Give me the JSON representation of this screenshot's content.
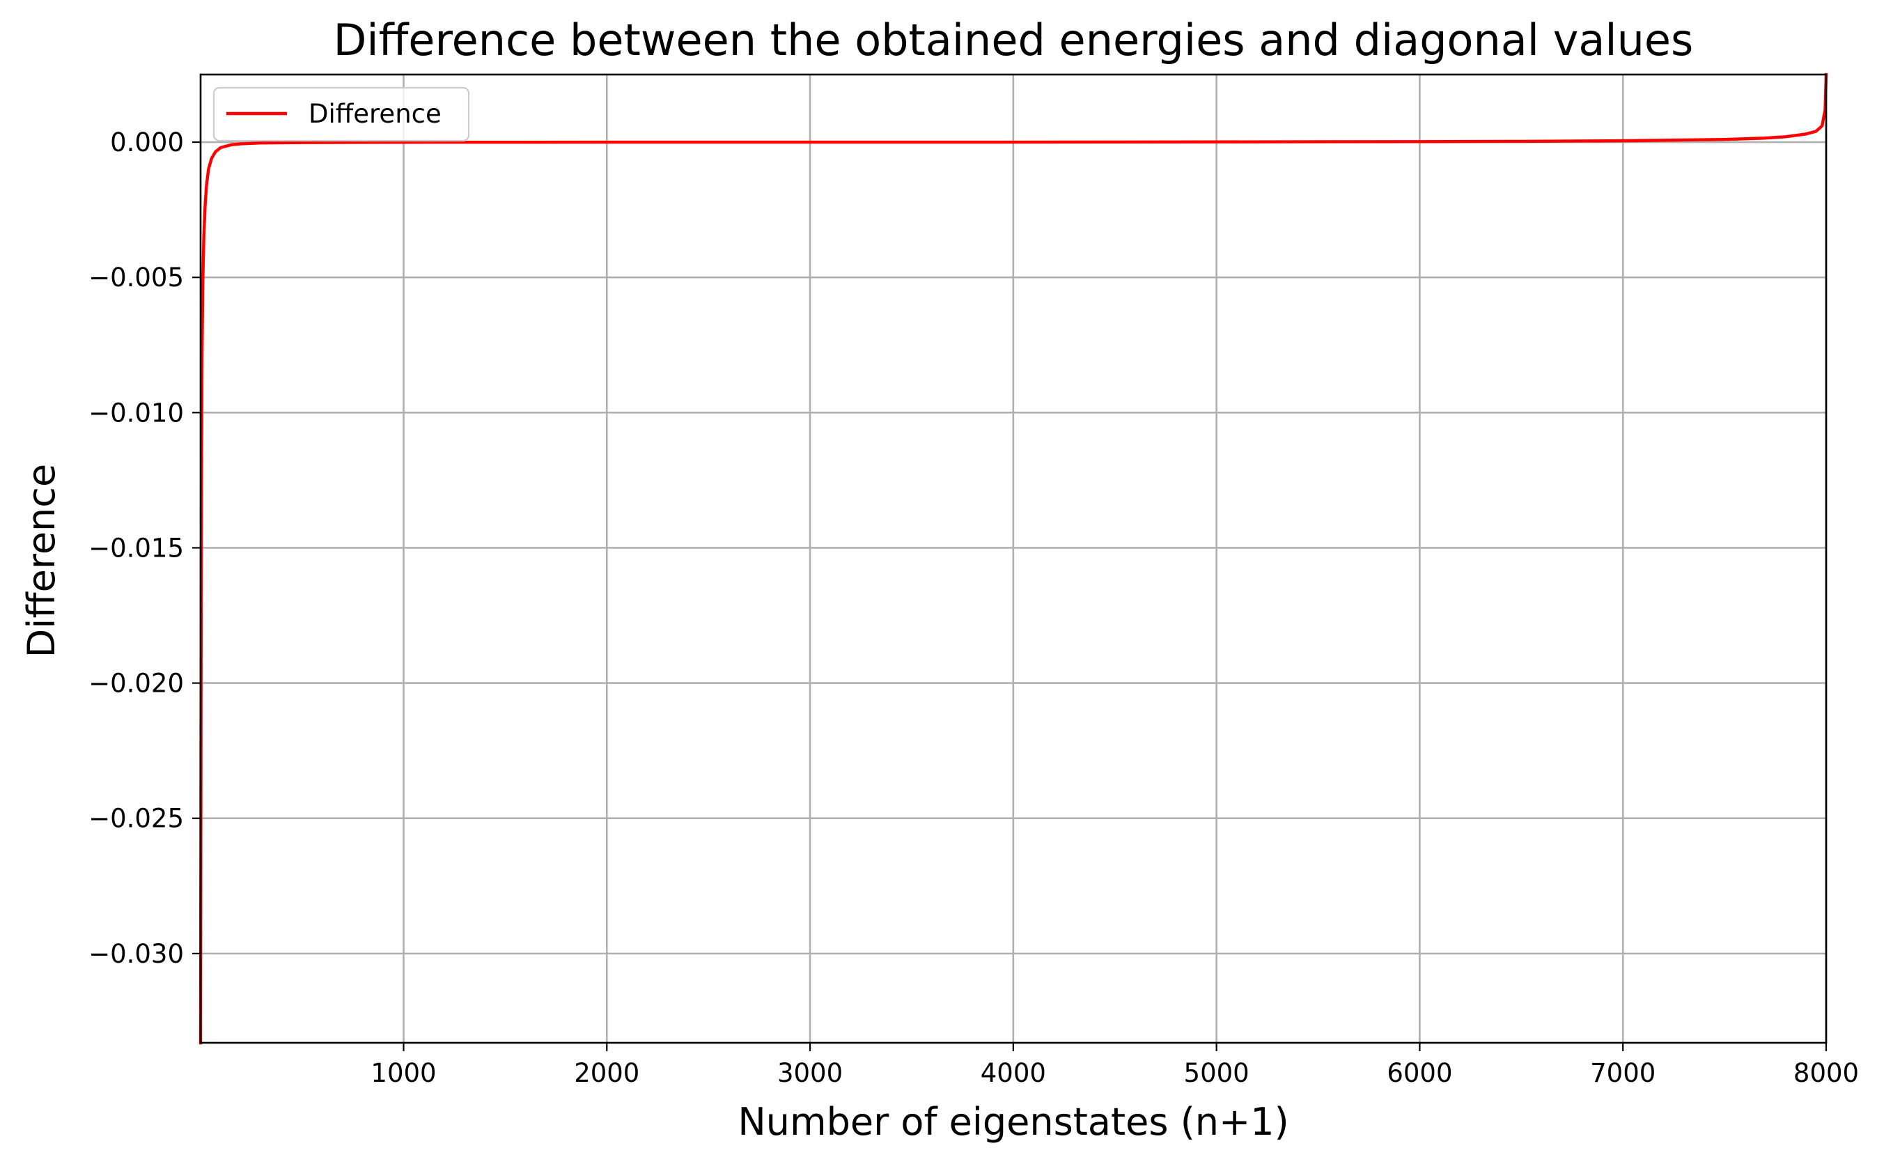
{
  "chart_data": {
    "type": "line",
    "title": "Difference between the obtained energies and diagonal values",
    "xlabel": "Number of eigenstates (n+1)",
    "ylabel": "Difference",
    "xlim": [
      1,
      8000
    ],
    "ylim": [
      -0.0333,
      0.0025
    ],
    "x_ticks": [
      1000,
      2000,
      3000,
      4000,
      5000,
      6000,
      7000,
      8000
    ],
    "x_tick_labels": [
      "1000",
      "2000",
      "3000",
      "4000",
      "5000",
      "6000",
      "7000",
      "8000"
    ],
    "y_ticks": [
      0.0,
      -0.005,
      -0.01,
      -0.015,
      -0.02,
      -0.025,
      -0.03
    ],
    "y_tick_labels": [
      "0.000",
      "−0.005",
      "−0.010",
      "−0.015",
      "−0.020",
      "−0.025",
      "−0.030"
    ],
    "grid": true,
    "legend_position": "top-left",
    "series": [
      {
        "name": "Difference",
        "color": "#ff0000",
        "x": [
          1,
          3,
          5,
          8,
          12,
          17,
          23,
          30,
          40,
          55,
          75,
          100,
          150,
          200,
          300,
          500,
          1000,
          2000,
          3000,
          4000,
          5000,
          6000,
          6500,
          7000,
          7300,
          7500,
          7700,
          7800,
          7900,
          7950,
          7980,
          7995,
          8000
        ],
        "y": [
          -0.0333,
          -0.022,
          -0.0135,
          -0.008,
          -0.0052,
          -0.0035,
          -0.0024,
          -0.0016,
          -0.001,
          -0.0006,
          -0.00035,
          -0.0002,
          -0.0001,
          -6e-05,
          -3e-05,
          -1.5e-05,
          -5e-06,
          0.0,
          0.0,
          0.0,
          1e-05,
          2e-05,
          3e-05,
          5e-05,
          8e-05,
          0.0001,
          0.00015,
          0.0002,
          0.0003,
          0.0004,
          0.0006,
          0.0012,
          0.0025
        ]
      }
    ]
  }
}
